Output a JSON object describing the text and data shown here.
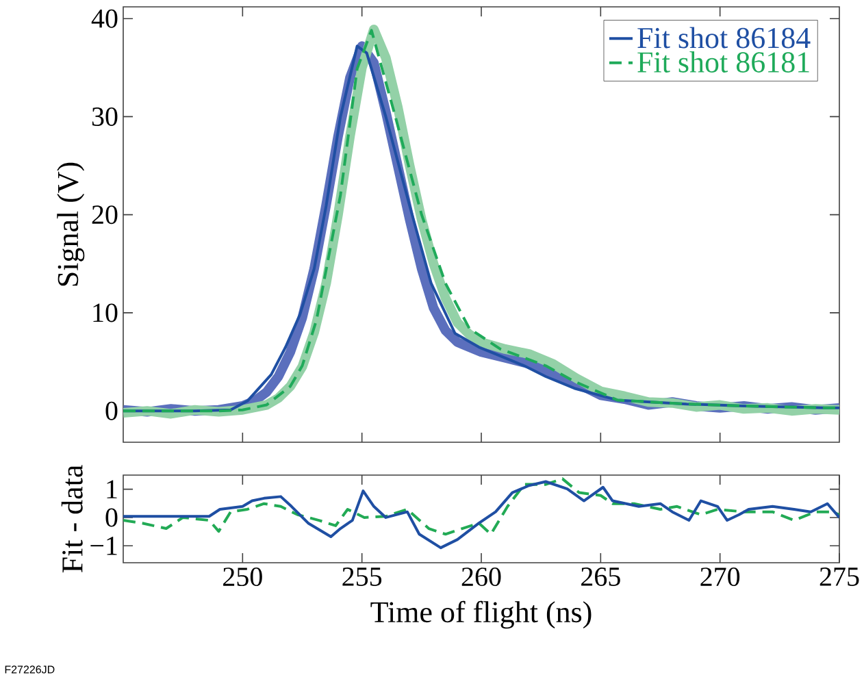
{
  "chart_data": [
    {
      "type": "line",
      "ylabel": "Signal (V)",
      "xlim": [
        245,
        275
      ],
      "xticks": [
        250,
        255,
        260,
        265,
        270
      ],
      "ylim": [
        -3.2,
        41.2
      ],
      "yticks": [
        0,
        10,
        20,
        30,
        40
      ],
      "tick_labels": "y",
      "legend": "top right",
      "series": [
        {
          "color": "#5b6fbd",
          "x": [
            245,
            246,
            247,
            248,
            249,
            250,
            250.5,
            251,
            251.5,
            252,
            252.5,
            253,
            253.5,
            254,
            254.5,
            255,
            255.5,
            256,
            256.5,
            257,
            257.5,
            258,
            258.5,
            259,
            260,
            261,
            262,
            263,
            264,
            265,
            266,
            267,
            268,
            269,
            270,
            271,
            272,
            273,
            274,
            275
          ],
          "values": [
            0.1,
            -0.1,
            0.2,
            0,
            0.1,
            0.5,
            1.0,
            1.9,
            3.5,
            6.0,
            9.5,
            14.5,
            21,
            28,
            34,
            37.2,
            35.5,
            30.5,
            25,
            19.5,
            14.5,
            10.5,
            8.2,
            7,
            6,
            5.4,
            4.8,
            3.8,
            2.8,
            1.6,
            1.2,
            0.6,
            0.9,
            0.5,
            0.3,
            0.5,
            0.2,
            0.4,
            0.1,
            0.3
          ]
        },
        {
          "color": "#93d1a7",
          "x": [
            245,
            246,
            247,
            248,
            249,
            250,
            251,
            251.5,
            252,
            252.5,
            253,
            253.5,
            254,
            254.5,
            255,
            255.5,
            256,
            256.5,
            257,
            257.5,
            258,
            258.5,
            259,
            259.5,
            260,
            261,
            262,
            263,
            264,
            265,
            266,
            267,
            268,
            269,
            270,
            271,
            272,
            273,
            274,
            275
          ],
          "values": [
            -0.2,
            0,
            -0.3,
            0.1,
            -0.1,
            0.1,
            0.6,
            1.3,
            2.5,
            4.5,
            8,
            13,
            20,
            28,
            35,
            38.9,
            36,
            31,
            25,
            19.5,
            15,
            11.5,
            9,
            7.8,
            7,
            6.3,
            5.8,
            4.8,
            3.3,
            2,
            1.5,
            0.9,
            0.8,
            0.4,
            0.6,
            0.2,
            0.3,
            0,
            0.2,
            0.1
          ]
        },
        {
          "name": "Fit shot 86184",
          "color": "#1f4fa3",
          "line_style": "solid",
          "x": [
            245,
            248,
            249.5,
            250.2,
            251.2,
            251.8,
            252.4,
            253,
            253.5,
            254.1,
            254.8,
            255.2,
            256,
            257,
            257.9,
            258.9,
            259.9,
            261,
            261.8,
            262.7,
            263.9,
            265.7,
            268.6,
            271,
            274.4,
            275
          ],
          "values": [
            0,
            0,
            0.1,
            1,
            3.7,
            6.5,
            9.8,
            14.5,
            20.9,
            30,
            37.2,
            36.5,
            30,
            20.9,
            13,
            7.9,
            6.5,
            5.4,
            4.6,
            3.5,
            2.3,
            1.1,
            0.7,
            0.5,
            0.3,
            0.3
          ]
        },
        {
          "name": "Fit shot 86181",
          "color": "#1faa5a",
          "line_style": "dashed",
          "x": [
            245,
            249,
            250,
            251,
            252,
            252.5,
            253.1,
            254.1,
            254.8,
            255.4,
            256.4,
            257.5,
            258.5,
            259.5,
            260.8,
            262.7,
            263.9,
            265.7,
            268.6,
            271,
            274.4,
            275
          ],
          "values": [
            0,
            0,
            0.1,
            0.6,
            2.5,
            4.6,
            9.3,
            22,
            34.9,
            38.8,
            30,
            20,
            13,
            8.4,
            6.3,
            4.6,
            3,
            1.1,
            0.7,
            0.5,
            0.3,
            0.3
          ]
        }
      ]
    },
    {
      "type": "line",
      "xlabel": "Time of flight (ns)",
      "ylabel": "Fit - data",
      "xlim": [
        245,
        275
      ],
      "xticks": [
        250,
        255,
        260,
        265,
        270,
        275
      ],
      "ylim": [
        -1.6,
        1.5
      ],
      "yticks": [
        {
          "value": -1,
          "label": "−1"
        },
        0,
        1
      ],
      "annotations": [
        "F27226JD"
      ],
      "series": [
        {
          "color": "#22aa55",
          "line_style": "dashed",
          "x": [
            245.0,
            245.8,
            246.8,
            247.5,
            248.6,
            249.0,
            249.5,
            250.2,
            250.9,
            251.6,
            252.3,
            253.2,
            253.9,
            254.4,
            255.1,
            256.0,
            256.9,
            257.8,
            258.5,
            259.2,
            259.9,
            260.4,
            261.1,
            261.8,
            262.7,
            263.4,
            264.1,
            265.0,
            265.5,
            266.4,
            267.5,
            268.2,
            269.2,
            269.9,
            271.0,
            272.2,
            273.1,
            274.0,
            274.7,
            275.0
          ],
          "values": [
            -0.1,
            -0.2,
            -0.39,
            0,
            -0.1,
            -0.49,
            0.2,
            0.29,
            0.49,
            0.39,
            0.1,
            -0.1,
            -0.29,
            0.29,
            0,
            0.04,
            0.29,
            -0.39,
            -0.59,
            -0.39,
            -0.2,
            -0.59,
            0.39,
            1.17,
            1.17,
            1.37,
            0.88,
            0.78,
            0.49,
            0.49,
            0.29,
            0.39,
            0.1,
            0.29,
            0.2,
            0.2,
            -0.1,
            0.2,
            0.2,
            0.1
          ]
        },
        {
          "color": "#1f4fa3",
          "line_style": "solid",
          "x": [
            245.0,
            248.6,
            249.05,
            250.0,
            250.4,
            250.9,
            251.6,
            252.05,
            252.75,
            253.7,
            254.1,
            254.6,
            255.05,
            255.5,
            256.0,
            256.9,
            257.4,
            258.3,
            259.0,
            259.9,
            260.6,
            261.3,
            262.0,
            262.7,
            263.6,
            264.3,
            265.1,
            265.5,
            266.6,
            267.5,
            268.0,
            268.7,
            269.2,
            269.9,
            270.3,
            270.8,
            271.2,
            272.2,
            273.1,
            273.8,
            274.5,
            275.0
          ],
          "values": [
            0.04,
            0.04,
            0.29,
            0.39,
            0.59,
            0.68,
            0.74,
            0.39,
            -0.2,
            -0.68,
            -0.39,
            -0.1,
            0.94,
            0.39,
            0,
            0.2,
            -0.59,
            -1.07,
            -0.78,
            -0.2,
            0.2,
            0.88,
            1.13,
            1.27,
            1.01,
            0.59,
            1.07,
            0.59,
            0.39,
            0.49,
            0.2,
            -0.1,
            0.59,
            0.39,
            -0.1,
            0.1,
            0.29,
            0.39,
            0.29,
            0.2,
            0.49,
            0
          ]
        }
      ]
    }
  ]
}
